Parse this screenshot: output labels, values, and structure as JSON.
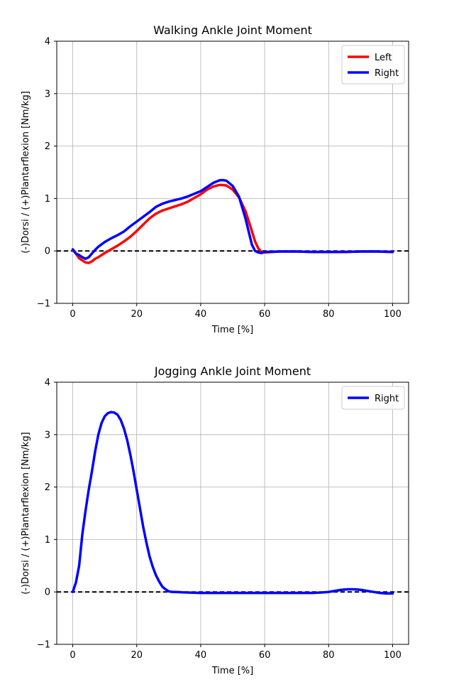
{
  "chart_data": [
    {
      "type": "line",
      "title": "Walking Ankle Joint Moment",
      "xlabel": "Time [%]",
      "ylabel": "(-)Dorsi / (+)Plantarflexion [Nm/kg]",
      "xlim": [
        -5,
        105
      ],
      "ylim": [
        -1,
        4
      ],
      "xticks": [
        0,
        20,
        40,
        60,
        80,
        100
      ],
      "yticks": [
        -1,
        0,
        1,
        2,
        3,
        4
      ],
      "grid": true,
      "legend": "top-right",
      "reference_line": {
        "y": 0,
        "style": "dashed",
        "color": "#000000"
      },
      "series": [
        {
          "name": "Left",
          "color": "#ff0000",
          "x": [
            0,
            1,
            2,
            3,
            4,
            5,
            6,
            7,
            8,
            10,
            12,
            14,
            16,
            18,
            20,
            22,
            24,
            26,
            28,
            30,
            32,
            34,
            36,
            38,
            40,
            42,
            44,
            46,
            48,
            50,
            52,
            54,
            56,
            57,
            58,
            59,
            60,
            65,
            70,
            75,
            80,
            85,
            90,
            95,
            100
          ],
          "y": [
            0.02,
            -0.05,
            -0.14,
            -0.18,
            -0.22,
            -0.23,
            -0.2,
            -0.15,
            -0.12,
            -0.04,
            0.03,
            0.1,
            0.18,
            0.27,
            0.38,
            0.5,
            0.62,
            0.71,
            0.77,
            0.81,
            0.85,
            0.89,
            0.94,
            1.01,
            1.08,
            1.17,
            1.23,
            1.26,
            1.25,
            1.17,
            1.02,
            0.76,
            0.38,
            0.18,
            0.05,
            -0.02,
            -0.03,
            -0.01,
            -0.01,
            -0.02,
            -0.02,
            -0.02,
            -0.01,
            -0.01,
            -0.02
          ]
        },
        {
          "name": "Right",
          "color": "#0000ff",
          "x": [
            0,
            1,
            2,
            3,
            4,
            5,
            6,
            7,
            8,
            10,
            12,
            14,
            16,
            18,
            20,
            22,
            24,
            26,
            28,
            30,
            32,
            34,
            36,
            38,
            40,
            42,
            44,
            46,
            47,
            48,
            50,
            52,
            54,
            56,
            57,
            58,
            59,
            60,
            65,
            70,
            75,
            80,
            85,
            90,
            95,
            100
          ],
          "y": [
            0.03,
            -0.05,
            -0.08,
            -0.12,
            -0.15,
            -0.12,
            -0.05,
            0.02,
            0.08,
            0.17,
            0.24,
            0.3,
            0.37,
            0.47,
            0.56,
            0.65,
            0.74,
            0.84,
            0.9,
            0.94,
            0.97,
            1.0,
            1.04,
            1.09,
            1.14,
            1.22,
            1.3,
            1.35,
            1.35,
            1.34,
            1.24,
            1.03,
            0.62,
            0.12,
            0.0,
            -0.03,
            -0.04,
            -0.02,
            -0.01,
            -0.01,
            -0.02,
            -0.02,
            -0.02,
            -0.01,
            -0.01,
            -0.02
          ]
        }
      ]
    },
    {
      "type": "line",
      "title": "Jogging Ankle Joint Moment",
      "xlabel": "Time [%]",
      "ylabel": "(-)Dorsi / (+)Plantarflexion [Nm/kg]",
      "xlim": [
        -5,
        105
      ],
      "ylim": [
        -1,
        4
      ],
      "xticks": [
        0,
        20,
        40,
        60,
        80,
        100
      ],
      "yticks": [
        -1,
        0,
        1,
        2,
        3,
        4
      ],
      "grid": true,
      "legend": "top-right",
      "reference_line": {
        "y": 0,
        "style": "dashed",
        "color": "#000000"
      },
      "series": [
        {
          "name": "Right",
          "color": "#0000ff",
          "x": [
            0,
            1,
            2,
            3,
            4,
            5,
            6,
            7,
            8,
            9,
            10,
            11,
            12,
            13,
            14,
            15,
            16,
            17,
            18,
            19,
            20,
            21,
            22,
            23,
            24,
            25,
            26,
            27,
            28,
            29,
            30,
            31,
            32,
            35,
            40,
            45,
            50,
            55,
            60,
            65,
            70,
            75,
            78,
            80,
            82,
            84,
            86,
            88,
            90,
            92,
            94,
            96,
            98,
            100
          ],
          "y": [
            0.0,
            0.18,
            0.5,
            1.1,
            1.55,
            1.95,
            2.3,
            2.68,
            3.0,
            3.22,
            3.35,
            3.41,
            3.43,
            3.42,
            3.38,
            3.28,
            3.12,
            2.9,
            2.62,
            2.3,
            1.95,
            1.6,
            1.25,
            0.95,
            0.68,
            0.48,
            0.32,
            0.2,
            0.1,
            0.05,
            0.01,
            0.0,
            0.0,
            -0.01,
            -0.02,
            -0.02,
            -0.02,
            -0.02,
            -0.02,
            -0.02,
            -0.02,
            -0.02,
            -0.01,
            0.0,
            0.02,
            0.04,
            0.05,
            0.05,
            0.04,
            0.02,
            0.0,
            -0.02,
            -0.03,
            -0.03
          ]
        }
      ]
    }
  ]
}
